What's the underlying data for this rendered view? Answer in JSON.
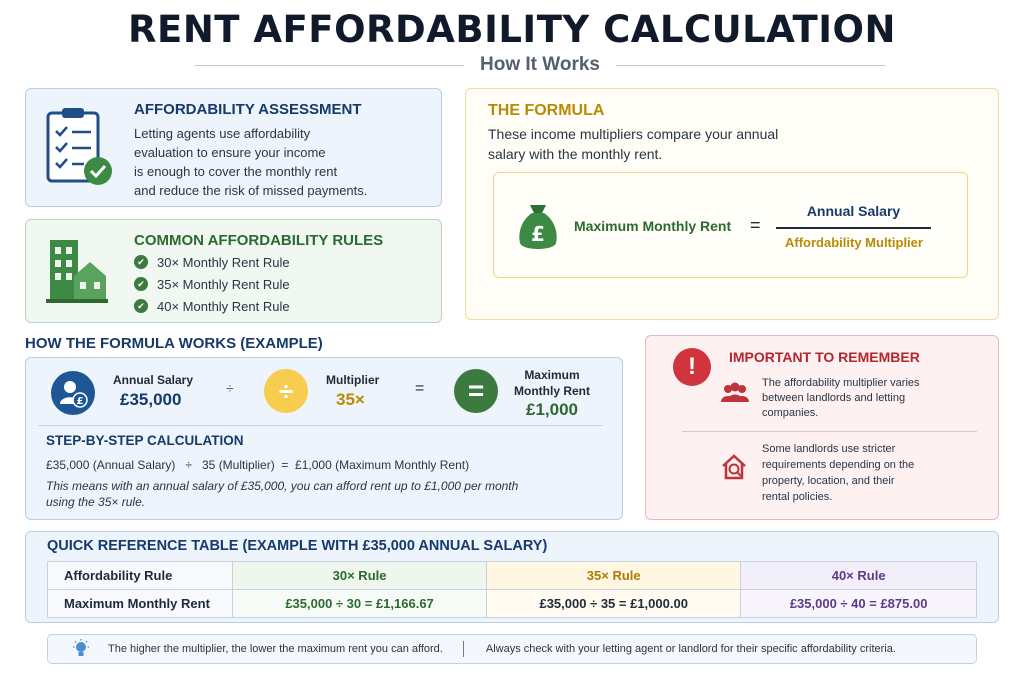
{
  "title": "RENT AFFORDABILITY CALCULATION",
  "subtitle": "How It Works",
  "assessment": {
    "heading": "AFFORDABILITY ASSESSMENT",
    "lines": [
      "Letting agents use affordability",
      "evaluation to ensure your income",
      "is enough to cover the monthly rent",
      "and reduce the risk of missed payments."
    ]
  },
  "rules": {
    "heading": "COMMON AFFORDABILITY RULES",
    "items": [
      "30× Monthly Rent Rule",
      "35× Monthly Rent Rule",
      "40× Monthly Rent Rule"
    ]
  },
  "formula": {
    "heading": "THE FORMULA",
    "lines": [
      "These income multipliers compare your annual",
      "salary with the monthly rent."
    ],
    "left": "Maximum Monthly Rent",
    "equals": "=",
    "numerator": "Annual Salary",
    "denominator": "Affordability Multiplier",
    "currency_symbol": "£"
  },
  "example": {
    "heading": "HOW THE FORMULA WORKS (EXAMPLE)",
    "salary_label": "Annual Salary",
    "salary_value": "£35,000",
    "divide_sign": "÷",
    "multiplier_label": "Multiplier",
    "multiplier_value": "35×",
    "equals_sign": "=",
    "result_label_1": "Maximum",
    "result_label_2": "Monthly Rent",
    "result_value": "£1,000",
    "steps_heading": "STEP-BY-STEP CALCULATION",
    "steps_line": "£35,000 (Annual Salary)   ÷   35 (Multiplier)  =  £1,000 (Maximum Monthly Rent)",
    "note_1": "This means with an annual salary of £35,000, you can afford rent up to £1,000 per month",
    "note_2": "using the 35× rule."
  },
  "remember": {
    "heading": "IMPORTANT TO REMEMBER",
    "point_1": [
      "The affordability multiplier varies",
      "between landlords and letting",
      "companies."
    ],
    "point_2": [
      "Some landlords use stricter",
      "requirements depending on the",
      "property, location, and their",
      "rental policies."
    ]
  },
  "table": {
    "heading": "QUICK REFERENCE TABLE (EXAMPLE WITH £35,000 ANNUAL SALARY)",
    "row_labels": [
      "Affordability Rule",
      "Maximum Monthly Rent"
    ],
    "columns": [
      {
        "rule": "30× Rule",
        "rent": "£35,000 ÷ 30 = £1,166.67"
      },
      {
        "rule": "35× Rule",
        "rent": "£35,000 ÷ 35 = £1,000.00"
      },
      {
        "rule": "40× Rule",
        "rent": "£35,000 ÷ 40 = £875.00"
      }
    ]
  },
  "tips": {
    "tip_1": "The higher the multiplier, the lower the maximum rent you can afford.",
    "tip_2": "Always check with your letting agent or landlord for their specific affordability criteria."
  },
  "colors": {
    "navy": "#153a6b",
    "green": "#3d7a3f",
    "gold": "#b98a07",
    "red": "#b3262e",
    "purple": "#5b3a8c"
  },
  "icons": [
    "clipboard-check-icon",
    "buildings-icon",
    "money-bag-icon",
    "user-pound-icon",
    "divide-icon",
    "equals-icon",
    "exclamation-icon",
    "people-icon",
    "house-search-icon",
    "lightbulb-icon"
  ]
}
